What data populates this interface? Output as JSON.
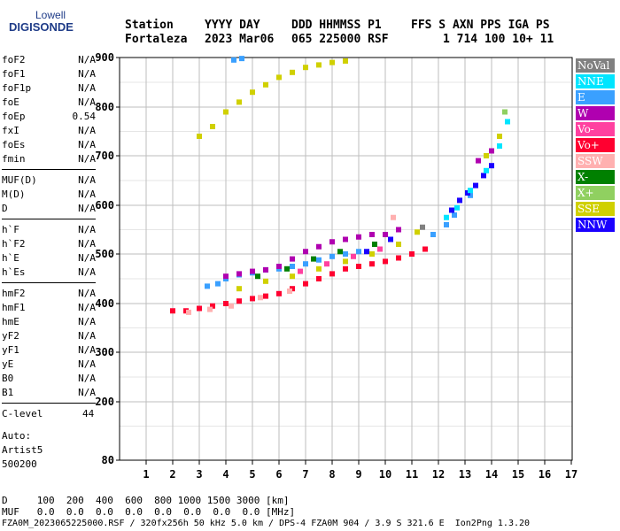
{
  "logo": {
    "line1": "Lowell",
    "line2": "DIGISONDE"
  },
  "header": {
    "row1": [
      "Station",
      "YYYY DAY",
      "DDD HHMMSS P1",
      "FFS S AXN PPS IGA PS"
    ],
    "row2": [
      "Fortaleza",
      "2023 Mar06",
      "065 225000 RSF",
      "1 714 100 10+ 11"
    ]
  },
  "params_group1": [
    {
      "name": "foF2",
      "value": "N/A"
    },
    {
      "name": "foF1",
      "value": "N/A"
    },
    {
      "name": "foF1p",
      "value": "N/A"
    },
    {
      "name": "foE",
      "value": "N/A"
    },
    {
      "name": "foEp",
      "value": "0.54"
    },
    {
      "name": "fxI",
      "value": "N/A"
    },
    {
      "name": "foEs",
      "value": "N/A"
    },
    {
      "name": "fmin",
      "value": "N/A"
    }
  ],
  "params_group2": [
    {
      "name": "MUF(D)",
      "value": "N/A"
    },
    {
      "name": "M(D)",
      "value": "N/A"
    },
    {
      "name": "D",
      "value": "N/A"
    }
  ],
  "params_group3": [
    {
      "name": "h`F",
      "value": "N/A"
    },
    {
      "name": "h`F2",
      "value": "N/A"
    },
    {
      "name": "h`E",
      "value": "N/A"
    },
    {
      "name": "h`Es",
      "value": "N/A"
    }
  ],
  "params_group4": [
    {
      "name": "hmF2",
      "value": "N/A"
    },
    {
      "name": "hmF1",
      "value": "N/A"
    },
    {
      "name": "hmE",
      "value": "N/A"
    },
    {
      "name": "yF2",
      "value": "N/A"
    },
    {
      "name": "yF1",
      "value": "N/A"
    },
    {
      "name": "yE",
      "value": "N/A"
    },
    {
      "name": "B0",
      "value": "N/A"
    },
    {
      "name": "B1",
      "value": "N/A"
    }
  ],
  "clevel": {
    "name": "C-level",
    "value": "44"
  },
  "auto": {
    "line1": "Auto:",
    "line2": "Artist5",
    "line3": "500200"
  },
  "legend": [
    {
      "label": "NoVal",
      "color": "#808080"
    },
    {
      "label": "NNE",
      "color": "#00e5ff"
    },
    {
      "label": "E",
      "color": "#3aa0ff"
    },
    {
      "label": "W",
      "color": "#b000b0"
    },
    {
      "label": "Vo-",
      "color": "#ff40a0"
    },
    {
      "label": "Vo+",
      "color": "#ff0030"
    },
    {
      "label": "SSW",
      "color": "#ffb0b0"
    },
    {
      "label": "X-",
      "color": "#008000"
    },
    {
      "label": "X+",
      "color": "#90d060"
    },
    {
      "label": "SSE",
      "color": "#d0d000"
    },
    {
      "label": "NNW",
      "color": "#1a00ff"
    }
  ],
  "footer": {
    "d_row": "D     100  200  400  600  800 1000 1500 3000 [km]",
    "muf_row": "MUF   0.0  0.0  0.0  0.0  0.0  0.0  0.0  0.0 [MHz]",
    "file_row": "FZA0M_2023065225000.RSF / 320fx256h 50 kHz 5.0 km / DPS-4 FZA0M 904 / 3.9 S 321.6 E  Ion2Png 1.3.20"
  },
  "chart_data": {
    "type": "scatter",
    "x_ticks": [
      1,
      2,
      3,
      4,
      5,
      6,
      7,
      8,
      9,
      10,
      11,
      12,
      13,
      14,
      15,
      16,
      17
    ],
    "y_ticks": [
      80,
      200,
      300,
      400,
      500,
      600,
      700,
      800,
      900
    ],
    "xlim": [
      0.55,
      17
    ],
    "ylim": [
      80,
      900
    ],
    "grid": true,
    "series": [
      {
        "name": "Vo+",
        "color": "#ff0030",
        "points": [
          [
            2.0,
            385
          ],
          [
            2.5,
            385
          ],
          [
            3.0,
            390
          ],
          [
            3.5,
            395
          ],
          [
            4.0,
            400
          ],
          [
            4.5,
            405
          ],
          [
            5.0,
            410
          ],
          [
            5.5,
            415
          ],
          [
            6.0,
            420
          ],
          [
            6.5,
            430
          ],
          [
            7.0,
            440
          ],
          [
            7.5,
            450
          ],
          [
            8.0,
            460
          ],
          [
            8.5,
            470
          ],
          [
            9.0,
            475
          ],
          [
            9.5,
            480
          ],
          [
            10.0,
            485
          ],
          [
            10.5,
            492
          ],
          [
            11.0,
            500
          ],
          [
            11.5,
            510
          ]
        ]
      },
      {
        "name": "E",
        "color": "#3aa0ff",
        "points": [
          [
            3.3,
            435
          ],
          [
            3.7,
            440
          ],
          [
            4.0,
            450
          ],
          [
            4.5,
            458
          ],
          [
            5.0,
            462
          ],
          [
            5.5,
            468
          ],
          [
            6.0,
            470
          ],
          [
            6.5,
            475
          ],
          [
            7.0,
            480
          ],
          [
            7.5,
            488
          ],
          [
            8.0,
            495
          ],
          [
            8.5,
            500
          ],
          [
            9.0,
            505
          ],
          [
            11.8,
            540
          ],
          [
            12.3,
            560
          ],
          [
            12.6,
            580
          ],
          [
            13.2,
            620
          ],
          [
            4.3,
            895
          ],
          [
            4.6,
            898
          ]
        ]
      },
      {
        "name": "W",
        "color": "#b000b0",
        "points": [
          [
            4.0,
            455
          ],
          [
            4.5,
            460
          ],
          [
            5.0,
            465
          ],
          [
            5.5,
            468
          ],
          [
            6.0,
            475
          ],
          [
            6.5,
            490
          ],
          [
            7.0,
            505
          ],
          [
            7.5,
            515
          ],
          [
            8.0,
            525
          ],
          [
            8.5,
            530
          ],
          [
            9.0,
            535
          ],
          [
            9.5,
            540
          ],
          [
            10.0,
            540
          ],
          [
            10.5,
            550
          ],
          [
            13.5,
            690
          ],
          [
            14.0,
            710
          ]
        ]
      },
      {
        "name": "SSE",
        "color": "#d0d000",
        "points": [
          [
            3.0,
            740
          ],
          [
            3.5,
            760
          ],
          [
            4.0,
            790
          ],
          [
            4.5,
            810
          ],
          [
            5.0,
            830
          ],
          [
            5.5,
            845
          ],
          [
            6.0,
            860
          ],
          [
            6.5,
            870
          ],
          [
            7.0,
            880
          ],
          [
            7.5,
            885
          ],
          [
            8.0,
            890
          ],
          [
            8.5,
            893
          ],
          [
            4.5,
            430
          ],
          [
            5.5,
            445
          ],
          [
            6.5,
            455
          ],
          [
            7.5,
            470
          ],
          [
            8.5,
            485
          ],
          [
            9.5,
            500
          ],
          [
            10.5,
            520
          ],
          [
            11.2,
            545
          ],
          [
            13.8,
            700
          ],
          [
            14.3,
            740
          ]
        ]
      },
      {
        "name": "NNW",
        "color": "#1a00ff",
        "points": [
          [
            12.5,
            590
          ],
          [
            12.8,
            610
          ],
          [
            13.1,
            625
          ],
          [
            13.4,
            640
          ],
          [
            13.7,
            660
          ],
          [
            14.0,
            680
          ],
          [
            9.3,
            505
          ],
          [
            10.2,
            530
          ]
        ]
      },
      {
        "name": "NNE",
        "color": "#00e5ff",
        "points": [
          [
            12.3,
            575
          ],
          [
            12.7,
            595
          ],
          [
            13.2,
            630
          ],
          [
            13.8,
            670
          ],
          [
            14.3,
            720
          ],
          [
            14.6,
            770
          ]
        ]
      },
      {
        "name": "X-",
        "color": "#008000",
        "points": [
          [
            5.2,
            455
          ],
          [
            6.3,
            470
          ],
          [
            7.3,
            490
          ],
          [
            8.3,
            505
          ],
          [
            9.6,
            520
          ]
        ]
      },
      {
        "name": "SSW",
        "color": "#ffb0b0",
        "points": [
          [
            2.6,
            382
          ],
          [
            3.4,
            388
          ],
          [
            4.2,
            395
          ],
          [
            5.3,
            412
          ],
          [
            6.4,
            425
          ],
          [
            10.3,
            575
          ]
        ]
      },
      {
        "name": "Vo-",
        "color": "#ff40a0",
        "points": [
          [
            6.8,
            465
          ],
          [
            7.8,
            480
          ],
          [
            8.8,
            495
          ],
          [
            9.8,
            510
          ]
        ]
      },
      {
        "name": "X+",
        "color": "#90d060",
        "points": [
          [
            14.5,
            790
          ]
        ]
      },
      {
        "name": "NoVal",
        "color": "#808080",
        "points": [
          [
            11.4,
            555
          ]
        ]
      }
    ]
  }
}
